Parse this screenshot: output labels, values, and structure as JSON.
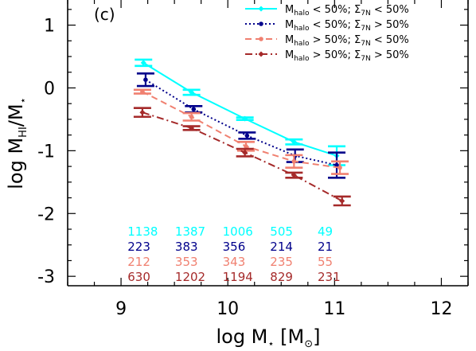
{
  "chart_data": {
    "type": "line",
    "panel_label": "(c)",
    "xlabel": {
      "main": "log M",
      "sub": "⋆",
      "unit": " [M",
      "unit_sub": "⊙",
      "unit_end": "]"
    },
    "ylabel": {
      "main": "log M",
      "sub": "HI",
      "mid": "/M",
      "sub2": "⋆"
    },
    "xlim": [
      8.5,
      12.25
    ],
    "ylim": [
      -3.15,
      1.4
    ],
    "x_ticks": [
      9,
      10,
      11,
      12
    ],
    "x_tick_labels": [
      "9",
      "10",
      "11",
      "12"
    ],
    "y_ticks": [
      1,
      0,
      -1,
      -2,
      -3
    ],
    "y_tick_labels": [
      "1",
      "0",
      "-1",
      "-2",
      "-3"
    ],
    "grid": false,
    "legend_position": "top-right",
    "series": [
      {
        "legend": {
          "a": "M",
          "a_sub": "halo",
          "b": " < 50%; Σ",
          "b_sub": "7N",
          "c": " < 50%"
        },
        "color": "#00ffff",
        "dash": "none",
        "marker": "diamond",
        "x": [
          9.21,
          9.66,
          10.16,
          10.62,
          11.02
        ],
        "y": [
          0.4,
          -0.07,
          -0.49,
          -0.86,
          -1.08
        ],
        "err": [
          0.05,
          0.04,
          0.02,
          0.04,
          0.15
        ],
        "counts": [
          "1138",
          "1387",
          "1006",
          "505",
          "49"
        ]
      },
      {
        "legend": {
          "a": "M",
          "a_sub": "halo",
          "b": " < 50%; Σ",
          "b_sub": "7N",
          "c": " > 50%"
        },
        "color": "#00008b",
        "dash": "2,3",
        "marker": "circle",
        "x": [
          9.23,
          9.68,
          10.18,
          10.63,
          11.02
        ],
        "y": [
          0.13,
          -0.34,
          -0.76,
          -1.08,
          -1.23
        ],
        "err": [
          0.1,
          0.05,
          0.05,
          0.1,
          0.2
        ],
        "counts": [
          "223",
          "383",
          "356",
          "214",
          "21"
        ]
      },
      {
        "legend": {
          "a": "M",
          "a_sub": "halo",
          "b": " > 50%; Σ",
          "b_sub": "7N",
          "c": " < 50%"
        },
        "color": "#f08070",
        "dash": "8,5",
        "marker": "circle",
        "x": [
          9.2,
          9.66,
          10.17,
          10.62,
          11.05
        ],
        "y": [
          -0.06,
          -0.46,
          -0.93,
          -1.17,
          -1.27
        ],
        "err": [
          0.03,
          0.06,
          0.07,
          0.1,
          0.1
        ],
        "counts": [
          "212",
          "353",
          "343",
          "235",
          "55"
        ]
      },
      {
        "legend": {
          "a": "M",
          "a_sub": "halo",
          "b": " > 50%; Σ",
          "b_sub": "7N",
          "c": " > 50%"
        },
        "color": "#a52a2a",
        "dash": "9,4,2,4",
        "marker": "diamond",
        "x": [
          9.2,
          9.66,
          10.16,
          10.62,
          11.07
        ],
        "y": [
          -0.39,
          -0.64,
          -1.03,
          -1.39,
          -1.8
        ],
        "err": [
          0.07,
          0.03,
          0.06,
          0.04,
          0.07
        ],
        "counts": [
          "630",
          "1202",
          "1194",
          "829",
          "231"
        ]
      }
    ]
  }
}
